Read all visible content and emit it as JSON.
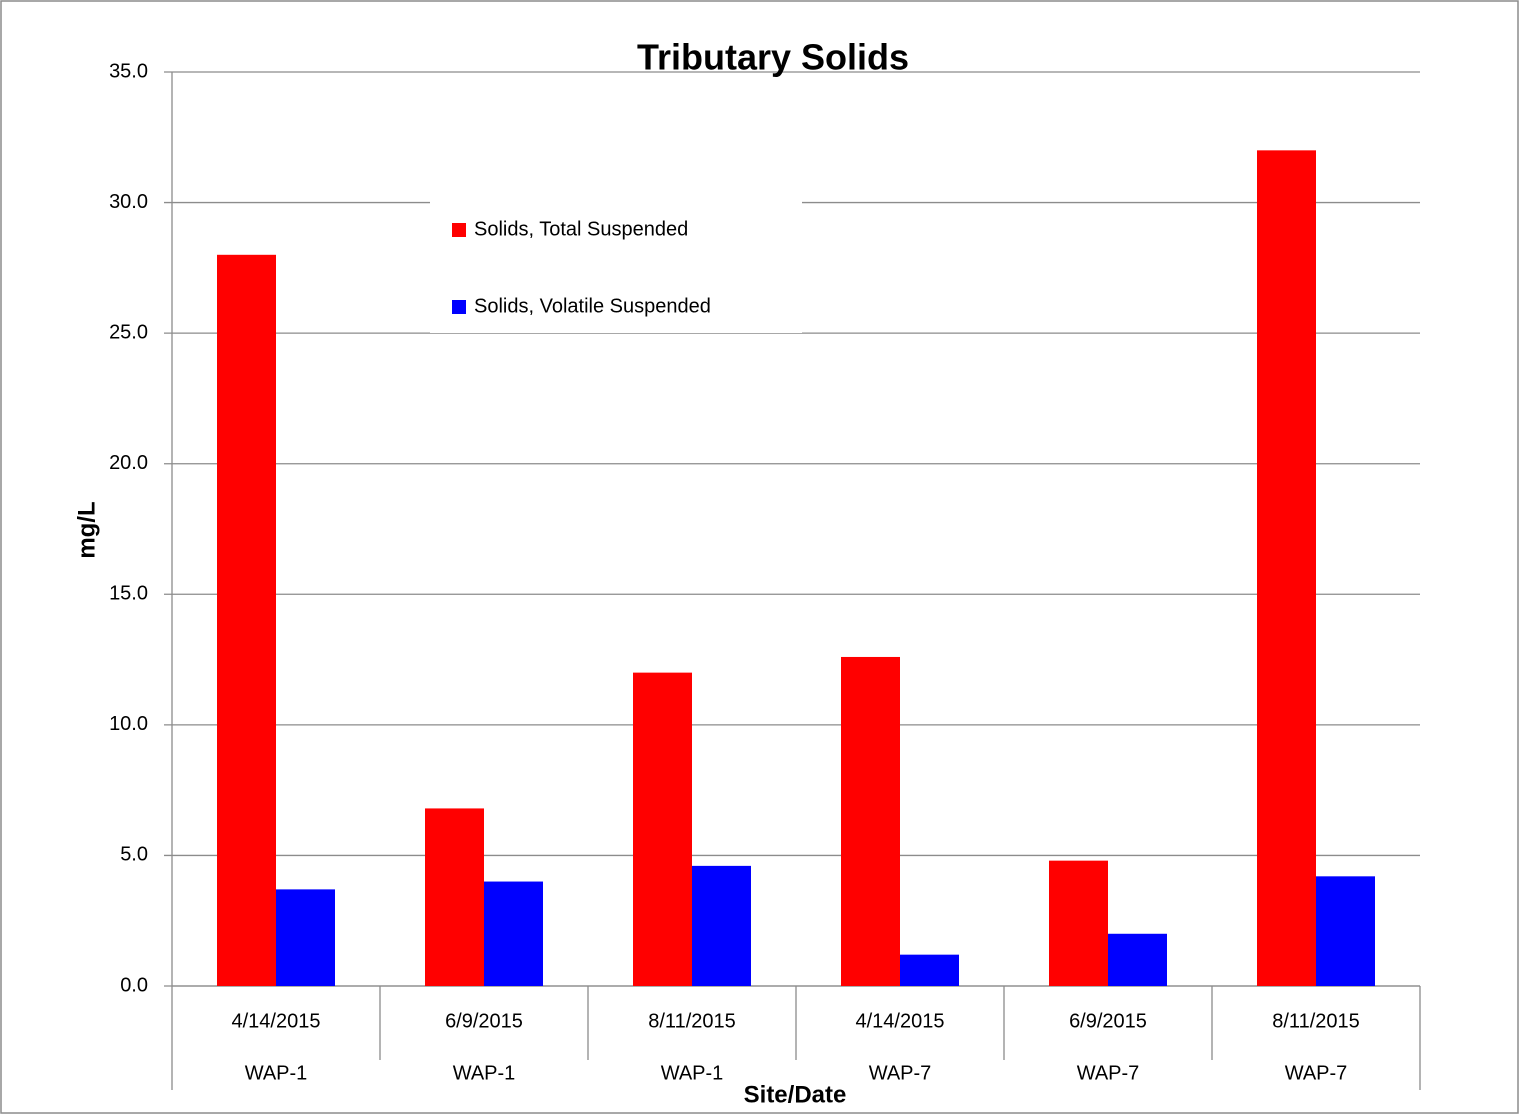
{
  "chart_data": {
    "type": "bar",
    "title": "Tributary Solids",
    "x_label": "Site/Date",
    "y_label": "mg/L",
    "categories": [
      "4/14/2015",
      "6/9/2015",
      "8/11/2015",
      "4/14/2015",
      "6/9/2015",
      "8/11/2015"
    ],
    "category_groups": [
      "WAP-1",
      "WAP-1",
      "WAP-1",
      "WAP-7",
      "WAP-7",
      "WAP-7"
    ],
    "series": [
      {
        "name": "Solids, Total Suspended",
        "color": "#ff0000",
        "values": [
          28.0,
          6.8,
          12.0,
          12.6,
          4.8,
          32.0
        ]
      },
      {
        "name": "Solids, Volatile Suspended",
        "color": "#0000ff",
        "values": [
          3.7,
          4.0,
          4.6,
          1.2,
          2.0,
          4.2
        ]
      }
    ],
    "ylim": [
      0,
      35
    ],
    "yticks": [
      {
        "value": 0,
        "label": "0.0"
      },
      {
        "value": 5,
        "label": "5.0"
      },
      {
        "value": 10,
        "label": "10.0"
      },
      {
        "value": 15,
        "label": "15.0"
      },
      {
        "value": 20,
        "label": "20.0"
      },
      {
        "value": 25,
        "label": "25.0"
      },
      {
        "value": 30,
        "label": "30.0"
      },
      {
        "value": 35,
        "label": "35.0"
      }
    ],
    "grid": true,
    "legend": "top"
  }
}
